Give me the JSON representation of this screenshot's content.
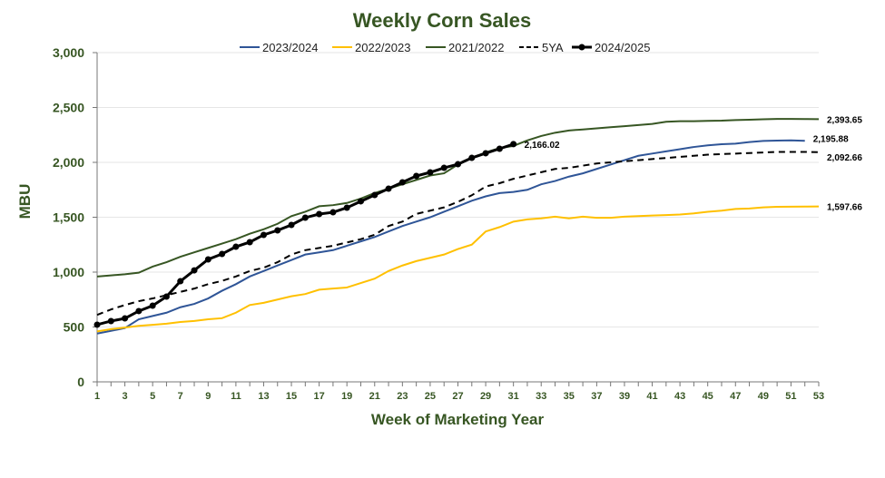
{
  "chart_data": {
    "type": "line",
    "title": "Weekly Corn Sales",
    "xlabel": "Week of Marketing Year",
    "ylabel": "MBU",
    "xlim": [
      1,
      53
    ],
    "ylim": [
      0,
      3000
    ],
    "yticks": [
      0,
      500,
      1000,
      1500,
      2000,
      2500,
      3000
    ],
    "ytick_labels": [
      "0",
      "500",
      "1,000",
      "1,500",
      "2,000",
      "2,500",
      "3,000"
    ],
    "xticks": [
      1,
      3,
      5,
      7,
      9,
      11,
      13,
      15,
      17,
      19,
      21,
      23,
      25,
      27,
      29,
      31,
      33,
      35,
      37,
      39,
      41,
      43,
      45,
      47,
      49,
      51,
      53
    ],
    "grid": true,
    "legend": "top",
    "series": [
      {
        "name": "2023/2024",
        "color": "#2f5597",
        "style": "solid",
        "end_label": "2,195.88",
        "values": [
          440,
          465,
          490,
          570,
          600,
          630,
          680,
          710,
          760,
          830,
          890,
          960,
          1010,
          1060,
          1110,
          1160,
          1180,
          1200,
          1240,
          1280,
          1320,
          1370,
          1420,
          1460,
          1500,
          1550,
          1600,
          1650,
          1690,
          1720,
          1730,
          1750,
          1800,
          1830,
          1870,
          1900,
          1940,
          1980,
          2020,
          2060,
          2080,
          2100,
          2120,
          2140,
          2155,
          2165,
          2170,
          2185,
          2195,
          2198,
          2200,
          2195.88
        ]
      },
      {
        "name": "2022/2023",
        "color": "#ffc000",
        "style": "solid",
        "end_label": "1,597.66",
        "values": [
          460,
          480,
          495,
          510,
          520,
          530,
          545,
          555,
          570,
          580,
          630,
          700,
          720,
          750,
          780,
          800,
          840,
          850,
          860,
          900,
          940,
          1010,
          1060,
          1100,
          1130,
          1160,
          1210,
          1250,
          1370,
          1410,
          1460,
          1480,
          1490,
          1505,
          1490,
          1505,
          1495,
          1495,
          1505,
          1510,
          1515,
          1520,
          1525,
          1535,
          1550,
          1560,
          1575,
          1580,
          1590,
          1595,
          1596,
          1597,
          1597.66
        ]
      },
      {
        "name": "2021/2022",
        "color": "#375623",
        "style": "solid",
        "end_label": "2,393.65",
        "values": [
          960,
          970,
          980,
          995,
          1050,
          1090,
          1140,
          1180,
          1220,
          1260,
          1300,
          1350,
          1390,
          1440,
          1510,
          1550,
          1600,
          1610,
          1630,
          1670,
          1720,
          1760,
          1800,
          1840,
          1880,
          1900,
          1980,
          2040,
          2090,
          2130,
          2150,
          2200,
          2240,
          2270,
          2290,
          2300,
          2310,
          2320,
          2330,
          2340,
          2350,
          2370,
          2375,
          2375,
          2378,
          2380,
          2385,
          2388,
          2393,
          2396,
          2396,
          2395,
          2393.65
        ]
      },
      {
        "name": "5YA",
        "color": "#000000",
        "style": "dashed",
        "end_label": "2,092.66",
        "values": [
          610,
          660,
          700,
          735,
          760,
          790,
          820,
          850,
          890,
          920,
          960,
          1010,
          1040,
          1090,
          1160,
          1200,
          1220,
          1240,
          1270,
          1300,
          1340,
          1420,
          1460,
          1530,
          1560,
          1590,
          1640,
          1700,
          1780,
          1810,
          1850,
          1880,
          1910,
          1940,
          1950,
          1970,
          1990,
          2000,
          2010,
          2020,
          2030,
          2040,
          2050,
          2060,
          2070,
          2075,
          2080,
          2085,
          2090,
          2095,
          2095,
          2095,
          2092.66
        ]
      },
      {
        "name": "2024/2025",
        "color": "#000000",
        "style": "markers",
        "end_label": "2,166.02",
        "values": [
          521,
          554,
          578,
          645,
          694,
          777,
          917,
          1016,
          1116,
          1165,
          1231,
          1273,
          1339,
          1380,
          1430,
          1496,
          1529,
          1545,
          1587,
          1645,
          1702,
          1760,
          1818,
          1876,
          1909,
          1950,
          1983,
          2041,
          2083,
          2124,
          2166.02
        ]
      }
    ]
  }
}
